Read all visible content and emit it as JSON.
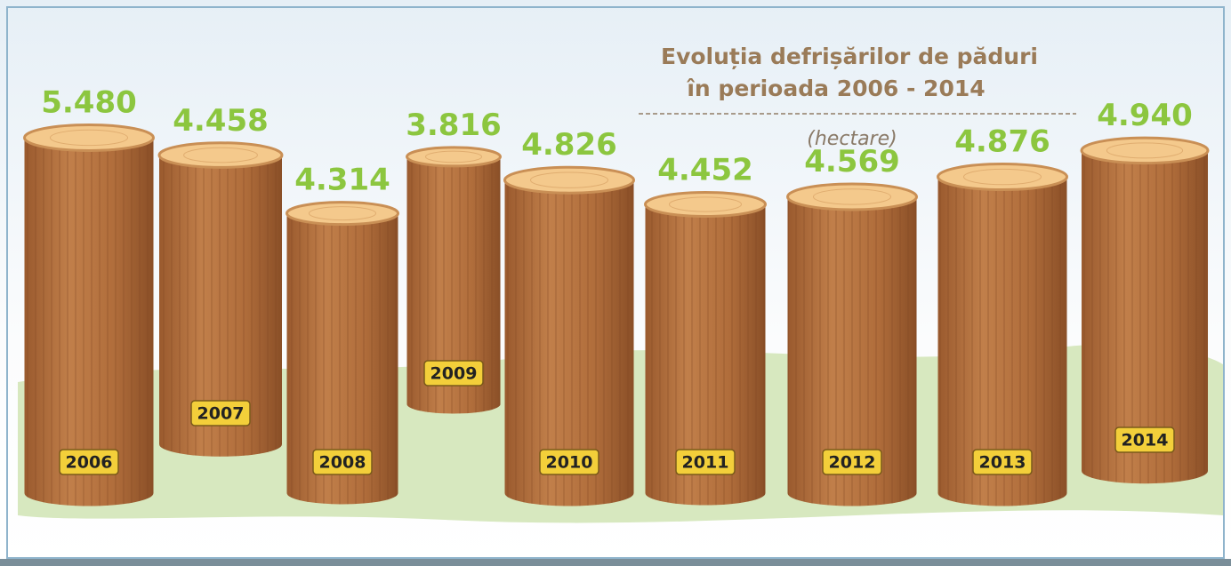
{
  "chart_data": {
    "type": "bar",
    "title": [
      "Evoluția defrișărilor de păduri",
      "în perioada 2006 - 2014"
    ],
    "subtitle": "(hectare)",
    "categories": [
      "2006",
      "2007",
      "2008",
      "2009",
      "2010",
      "2011",
      "2012",
      "2013",
      "2014"
    ],
    "values": [
      5480,
      4458,
      4314,
      3816,
      4826,
      4452,
      4569,
      4876,
      4940
    ],
    "value_labels": [
      "5.480",
      "4.458",
      "4.314",
      "3.816",
      "4.826",
      "4.452",
      "4.569",
      "4.876",
      "4.940"
    ],
    "color": "#b5703e"
  }
}
